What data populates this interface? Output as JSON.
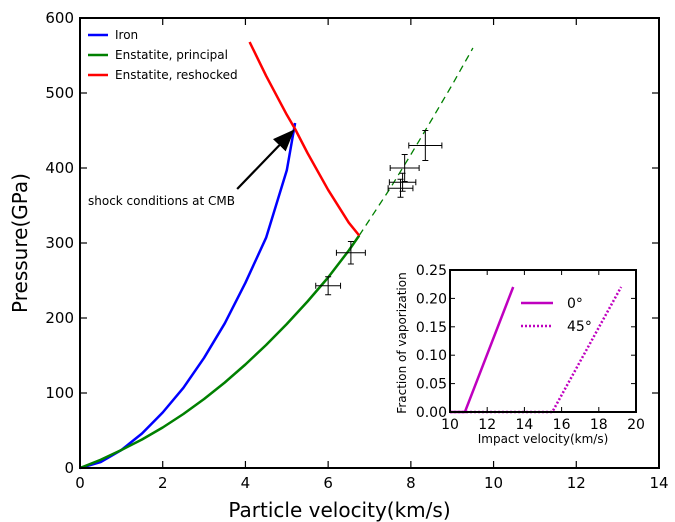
{
  "chart_data": [
    {
      "type": "line",
      "xlabel": "Particle velocity(km/s)",
      "ylabel": "Pressure(GPa)",
      "xlim": [
        0,
        14
      ],
      "ylim": [
        0,
        600
      ],
      "xticks": [
        "0",
        "2",
        "4",
        "6",
        "8",
        "10",
        "12",
        "14"
      ],
      "yticks": [
        "0",
        "100",
        "200",
        "300",
        "400",
        "500",
        "600"
      ],
      "legend_position": "top-left",
      "series": [
        {
          "name": "Iron",
          "color": "#0000ff",
          "style": "solid",
          "x": [
            0,
            0.5,
            1,
            1.5,
            2,
            2.5,
            3,
            3.5,
            4,
            4.5,
            5,
            5.2
          ],
          "y": [
            0,
            8,
            24,
            46,
            74,
            107,
            147,
            193,
            247,
            307,
            397,
            460
          ]
        },
        {
          "name": "Enstatite, principal",
          "color": "#008000",
          "style": "solid",
          "x": [
            0,
            0.5,
            1,
            1.5,
            2,
            2.5,
            3,
            3.5,
            4,
            4.5,
            5,
            5.5,
            6,
            6.5,
            6.75
          ],
          "y": [
            0,
            11,
            24,
            38,
            54,
            72,
            92,
            114,
            138,
            164,
            192,
            222,
            254,
            290,
            310
          ]
        },
        {
          "name": "Enstatite, principal (extrapolated)",
          "color": "#008000",
          "style": "dashed",
          "x": [
            6.75,
            7.5,
            8,
            8.5,
            9,
            9.5
          ],
          "y": [
            310,
            373,
            418,
            464,
            511,
            560
          ]
        },
        {
          "name": "Enstatite, reshocked",
          "color": "#ff0000",
          "style": "solid",
          "x": [
            4.1,
            4.5,
            5,
            5.2,
            5.5,
            6,
            6.5,
            6.75
          ],
          "y": [
            568,
            523,
            471,
            452,
            420,
            371,
            327,
            310
          ]
        }
      ],
      "legend_entries": [
        "Iron",
        "Enstatite, principal",
        "Enstatite, reshocked"
      ],
      "data_points": [
        {
          "x": 6.0,
          "y": 243,
          "xerr": 0.3,
          "yerr": 12
        },
        {
          "x": 6.55,
          "y": 287,
          "xerr": 0.35,
          "yerr": 15
        },
        {
          "x": 7.75,
          "y": 373,
          "xerr": 0.3,
          "yerr": 12
        },
        {
          "x": 7.8,
          "y": 381,
          "xerr": 0.32,
          "yerr": 12
        },
        {
          "x": 7.85,
          "y": 400,
          "xerr": 0.35,
          "yerr": 18
        },
        {
          "x": 8.35,
          "y": 430,
          "xerr": 0.4,
          "yerr": 20
        }
      ],
      "annotation": {
        "text": "shock conditions at CMB",
        "arrow_target": {
          "x": 5.2,
          "y": 452
        },
        "arrow_tail": {
          "x": 3.8,
          "y": 372
        }
      }
    },
    {
      "type": "line",
      "xlabel": "Impact velocity(km/s)",
      "ylabel": "Fraction of vaporization",
      "xlim": [
        10,
        20
      ],
      "ylim": [
        0,
        0.25
      ],
      "xticks": [
        "10",
        "12",
        "14",
        "16",
        "18",
        "20"
      ],
      "yticks": [
        "0.00",
        "0.05",
        "0.10",
        "0.15",
        "0.20",
        "0.25"
      ],
      "legend_position": "upper-right",
      "series": [
        {
          "name": "0°",
          "color": "#bf00bf",
          "style": "solid",
          "x": [
            10,
            10.8,
            13.4
          ],
          "y": [
            0,
            0,
            0.22
          ]
        },
        {
          "name": "45°",
          "color": "#bf00bf",
          "style": "dotted",
          "x": [
            10,
            15.5,
            19.2
          ],
          "y": [
            0,
            0,
            0.22
          ]
        }
      ]
    }
  ]
}
